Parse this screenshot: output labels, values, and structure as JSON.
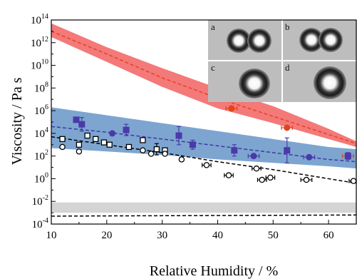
{
  "chart_data": {
    "type": "scatter",
    "title": "",
    "xlabel": "Relative Humidity / %",
    "ylabel": "Viscosity / Pa s",
    "xlim": [
      10,
      65
    ],
    "ylim_log10": [
      -4,
      14
    ],
    "y_scale": "log",
    "grid": false,
    "legend": "none",
    "x_ticks": [
      {
        "value": 10,
        "label": "10"
      },
      {
        "value": 20,
        "label": "20"
      },
      {
        "value": 30,
        "label": "30"
      },
      {
        "value": 40,
        "label": "40"
      },
      {
        "value": 50,
        "label": "50"
      },
      {
        "value": 60,
        "label": "60"
      }
    ],
    "y_ticks": [
      {
        "exp": 14,
        "base": "10",
        "sup": "14"
      },
      {
        "exp": 12,
        "base": "10",
        "sup": "12"
      },
      {
        "exp": 10,
        "base": "10",
        "sup": "10"
      },
      {
        "exp": 8,
        "base": "10",
        "sup": "8"
      },
      {
        "exp": 6,
        "base": "10",
        "sup": "6"
      },
      {
        "exp": 4,
        "base": "10",
        "sup": "4"
      },
      {
        "exp": 2,
        "base": "10",
        "sup": "2"
      },
      {
        "exp": 0,
        "base": "10",
        "sup": "0"
      },
      {
        "exp": -2,
        "base": "10",
        "sup": "-2"
      },
      {
        "exp": -4,
        "base": "10",
        "sup": "-4"
      }
    ],
    "bands": [
      {
        "color": "#f36a6a",
        "opacity": 0.9,
        "x": [
          10,
          20,
          30,
          40,
          50,
          60,
          65
        ],
        "upper_log10": [
          13.7,
          11.6,
          9.75,
          8.0,
          6.4,
          4.4,
          3.3
        ],
        "lower_log10": [
          12.5,
          10.3,
          8.1,
          6.2,
          4.9,
          3.5,
          2.8
        ]
      },
      {
        "color": "#6f9bcb",
        "opacity": 0.9,
        "x": [
          10,
          20,
          30,
          40,
          50,
          60,
          65
        ],
        "upper_log10": [
          6.3,
          5.6,
          4.9,
          4.2,
          3.5,
          2.8,
          2.6
        ],
        "lower_log10": [
          2.7,
          2.4,
          2.1,
          1.7,
          1.4,
          1.1,
          0.9
        ]
      },
      {
        "color": "#d4d4d4",
        "opacity": 1,
        "x": [
          10,
          65
        ],
        "upper_log10": [
          -2.1,
          -2.1
        ],
        "lower_log10": [
          -3.0,
          -3.0
        ]
      }
    ],
    "lines": [
      {
        "style": "dashed",
        "color": "#e0451f",
        "x": [
          10,
          20,
          30,
          40,
          50,
          60,
          65
        ],
        "log10": [
          13.0,
          11.0,
          8.9,
          7.1,
          5.5,
          3.9,
          3.1
        ]
      },
      {
        "style": "dashed",
        "color": "#3c3aa8",
        "x": [
          10,
          20,
          30,
          40,
          50,
          60,
          65
        ],
        "log10": [
          4.6,
          4.1,
          3.5,
          2.9,
          2.3,
          1.7,
          1.5
        ]
      },
      {
        "style": "dashed",
        "color": "#000000",
        "x": [
          10,
          20,
          30,
          40,
          50,
          60,
          65
        ],
        "log10": [
          3.7,
          3.0,
          2.3,
          1.5,
          0.8,
          0.0,
          -0.4
        ]
      },
      {
        "style": "dashed",
        "color": "#000000",
        "x": [
          10,
          65
        ],
        "log10": [
          -3.3,
          -3.2
        ]
      }
    ],
    "series": [
      {
        "marker": "circle-filled",
        "color": "#e0451f",
        "points": [
          {
            "x": 42.5,
            "log10": 6.2,
            "xerr": 1
          },
          {
            "x": 52.5,
            "log10": 4.5,
            "xerr": 1
          },
          {
            "x": 63.5,
            "log10": 2.0,
            "xerr": 1
          }
        ]
      },
      {
        "marker": "square-filled",
        "color": "#4a3aa8",
        "points": [
          {
            "x": 14.5,
            "log10": 5.2
          },
          {
            "x": 15.5,
            "log10": 4.8,
            "yerr": 0.6
          },
          {
            "x": 23.5,
            "log10": 4.3,
            "yerr": 0.5
          },
          {
            "x": 33.0,
            "log10": 3.8,
            "yerr": 0.8
          },
          {
            "x": 35.5,
            "log10": 3.0,
            "yerr": 0.4
          },
          {
            "x": 43.0,
            "log10": 2.5,
            "yerr": 0.5
          },
          {
            "x": 52.5,
            "log10": 2.5,
            "yerr": 1.1
          },
          {
            "x": 63.5,
            "log10": 2.0,
            "yerr": 0.3
          }
        ]
      },
      {
        "marker": "circle-filled",
        "color": "#4a3aa8",
        "points": [
          {
            "x": 21.0,
            "log10": 4.0
          },
          {
            "x": 46.5,
            "log10": 2.0,
            "xerr": 1
          },
          {
            "x": 56.5,
            "log10": 1.9,
            "xerr": 1
          }
        ]
      },
      {
        "marker": "square-open",
        "color": "#000000",
        "points": [
          {
            "x": 12.0,
            "log10": 3.5
          },
          {
            "x": 15.0,
            "log10": 3.0
          },
          {
            "x": 16.5,
            "log10": 3.8
          },
          {
            "x": 18.0,
            "log10": 3.5
          },
          {
            "x": 19.5,
            "log10": 3.2
          },
          {
            "x": 20.5,
            "log10": 3.0
          },
          {
            "x": 24.0,
            "log10": 2.8
          },
          {
            "x": 26.5,
            "log10": 3.4
          },
          {
            "x": 29.0,
            "log10": 2.6,
            "yerr": 0.5
          },
          {
            "x": 30.5,
            "log10": 2.5
          }
        ]
      },
      {
        "marker": "circle-open",
        "color": "#000000",
        "points": [
          {
            "x": 12.0,
            "log10": 2.8
          },
          {
            "x": 15.0,
            "log10": 2.4
          },
          {
            "x": 26.5,
            "log10": 2.5
          },
          {
            "x": 28.0,
            "log10": 2.2
          },
          {
            "x": 30.5,
            "log10": 2.2
          },
          {
            "x": 33.5,
            "log10": 1.7
          },
          {
            "x": 38.0,
            "log10": 1.2,
            "xerr": 0.8
          },
          {
            "x": 42.0,
            "log10": 0.3,
            "xerr": 0.8
          },
          {
            "x": 47.0,
            "log10": 0.9,
            "xerr": 0.8
          },
          {
            "x": 48.0,
            "log10": -0.1,
            "xerr": 0.8
          },
          {
            "x": 49.5,
            "log10": 0.1,
            "xerr": 0.8
          },
          {
            "x": 56.0,
            "log10": -0.1,
            "xerr": 1
          },
          {
            "x": 64.5,
            "log10": -0.2,
            "xerr": 0.8
          }
        ]
      }
    ],
    "inset_labels": [
      "a",
      "b",
      "c",
      "d"
    ]
  }
}
